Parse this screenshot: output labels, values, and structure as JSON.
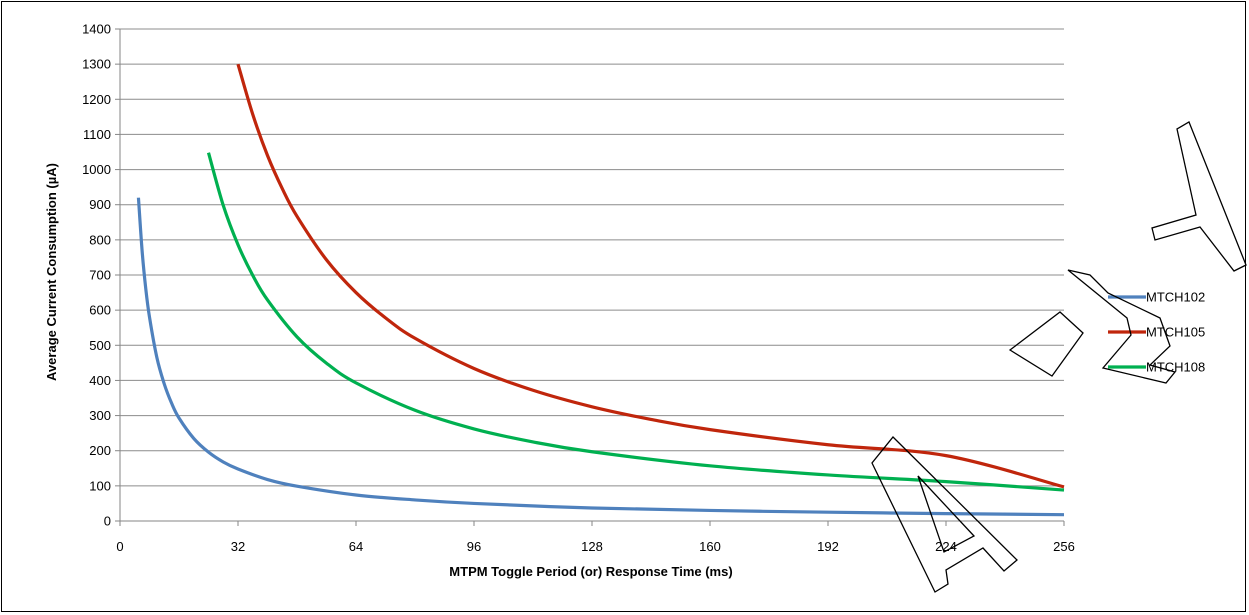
{
  "chart_data": {
    "type": "line",
    "title": "",
    "xlabel": "MTPM Toggle Period (or) Response Time (ms)",
    "ylabel": "Average Current Consumption (µA)",
    "xlim": [
      0,
      256
    ],
    "ylim": [
      0,
      1400
    ],
    "xticks": [
      0,
      32,
      64,
      96,
      128,
      160,
      192,
      224,
      256
    ],
    "yticks": [
      0,
      100,
      200,
      300,
      400,
      500,
      600,
      700,
      800,
      900,
      1000,
      1100,
      1200,
      1300,
      1400
    ],
    "grid": "horizontal",
    "legend_position": "right",
    "series": [
      {
        "name": "MTCH102",
        "color": "#4F81BD",
        "x": [
          5,
          6,
          7,
          8,
          10,
          12,
          14,
          16,
          20,
          24,
          28,
          32,
          40,
          48,
          64,
          80,
          96,
          128,
          160,
          192,
          224,
          256
        ],
        "y": [
          920,
          768,
          660,
          580,
          465,
          390,
          335,
          293,
          235,
          196,
          168,
          148,
          118,
          99,
          74,
          60,
          50,
          37,
          30,
          25,
          21,
          18
        ]
      },
      {
        "name": "MTCH105",
        "color": "#C0260C",
        "x": [
          32,
          36,
          40,
          44,
          48,
          56,
          64,
          72,
          80,
          96,
          112,
          128,
          144,
          160,
          192,
          224,
          256
        ],
        "y": [
          1300,
          1157,
          1040,
          946,
          867,
          743,
          650,
          578,
          520,
          434,
          372,
          325,
          289,
          260,
          217,
          186,
          97
        ]
      },
      {
        "name": "MTCH108",
        "color": "#00B050",
        "x": [
          24,
          28,
          32,
          36,
          40,
          48,
          56,
          64,
          80,
          96,
          112,
          128,
          160,
          192,
          224,
          256
        ],
        "y": [
          1048,
          898,
          786,
          699,
          629,
          524,
          449,
          393,
          315,
          262,
          225,
          197,
          157,
          131,
          112,
          88
        ]
      }
    ]
  },
  "watermark": "PRELIMINARY"
}
